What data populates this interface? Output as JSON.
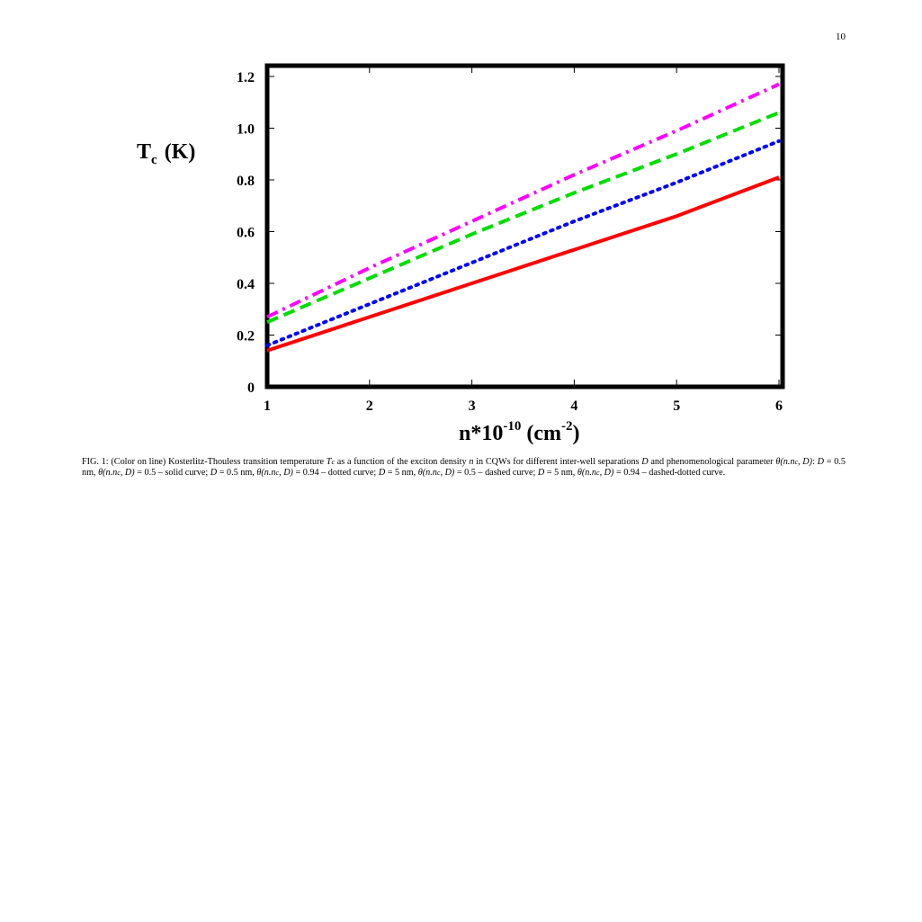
{
  "page_number": "10",
  "chart_data": {
    "type": "line",
    "title": "",
    "xlabel": {
      "main": "n*10",
      "exp1": "-10",
      "unit": " (cm",
      "exp2": "-2",
      "close": ")"
    },
    "ylabel": {
      "main": "T",
      "sub": "c",
      "unit": "(K)"
    },
    "xlim": [
      1,
      6
    ],
    "ylim": [
      0,
      1.25
    ],
    "x_ticks": [
      "1",
      "2",
      "3",
      "4",
      "5",
      "6"
    ],
    "y_ticks": [
      "0",
      "0.2",
      "0.4",
      "0.6",
      "0.8",
      "1.0",
      "1.2"
    ],
    "y_tick_values": [
      0,
      0.2,
      0.4,
      0.6,
      0.8,
      1.0,
      1.2
    ],
    "grid": false,
    "series": [
      {
        "style": "solid",
        "color": "#ff0000",
        "x": [
          1,
          2,
          3,
          4,
          5,
          6
        ],
        "y": [
          0.14,
          0.27,
          0.4,
          0.53,
          0.66,
          0.81
        ]
      },
      {
        "style": "dotted",
        "color": "#0000ff",
        "x": [
          1,
          2,
          3,
          4,
          5,
          6
        ],
        "y": [
          0.16,
          0.32,
          0.48,
          0.64,
          0.79,
          0.95
        ]
      },
      {
        "style": "dashed",
        "color": "#00dd00",
        "x": [
          1,
          2,
          3,
          4,
          5,
          6
        ],
        "y": [
          0.25,
          0.42,
          0.59,
          0.75,
          0.9,
          1.06
        ]
      },
      {
        "style": "dashdot",
        "color": "#ff00ff",
        "x": [
          1,
          2,
          3,
          4,
          5,
          6
        ],
        "y": [
          0.27,
          0.46,
          0.64,
          0.82,
          0.99,
          1.17
        ]
      }
    ]
  },
  "caption": {
    "t1": "FIG. 1:  (Color on line)  Kosterlitz-Thouless transition temperature ",
    "tc_main": "T",
    "tc_sub": "c",
    "t2": " as a function of the exciton density ",
    "n": "n",
    "t3": " in CQWs for different inter-well separations ",
    "D": "D",
    "t4": " and phenomenological parameter ",
    "theta": "θ(n.n",
    "theta_sub": "c",
    "theta_end": ", D)",
    "t5": ":  ",
    "c1_eq": "D",
    "c1": " = 0.5 nm, ",
    "c1_theta": "θ(n.n",
    "c1_theta_end": ", D)",
    "c1_val": " = 0.5 – solid curve; ",
    "c2_eq": "D",
    "c2": " = 0.5 nm, ",
    "c2_theta": "θ(n.n",
    "c2_theta_end": ", D)",
    "c2_val": " = 0.94 – dotted curve; ",
    "c3_eq": "D",
    "c3": " = 5 nm, ",
    "c3_theta": "θ(n.n",
    "c3_theta_end": ", D)",
    "c3_val": " = 0.5 – dashed curve; ",
    "c4_eq": "D",
    "c4": " = 5 nm, ",
    "c4_theta": "θ(n.n",
    "c4_theta_end": ", D)",
    "c4_val": " = 0.94 – dashed-dotted curve."
  }
}
